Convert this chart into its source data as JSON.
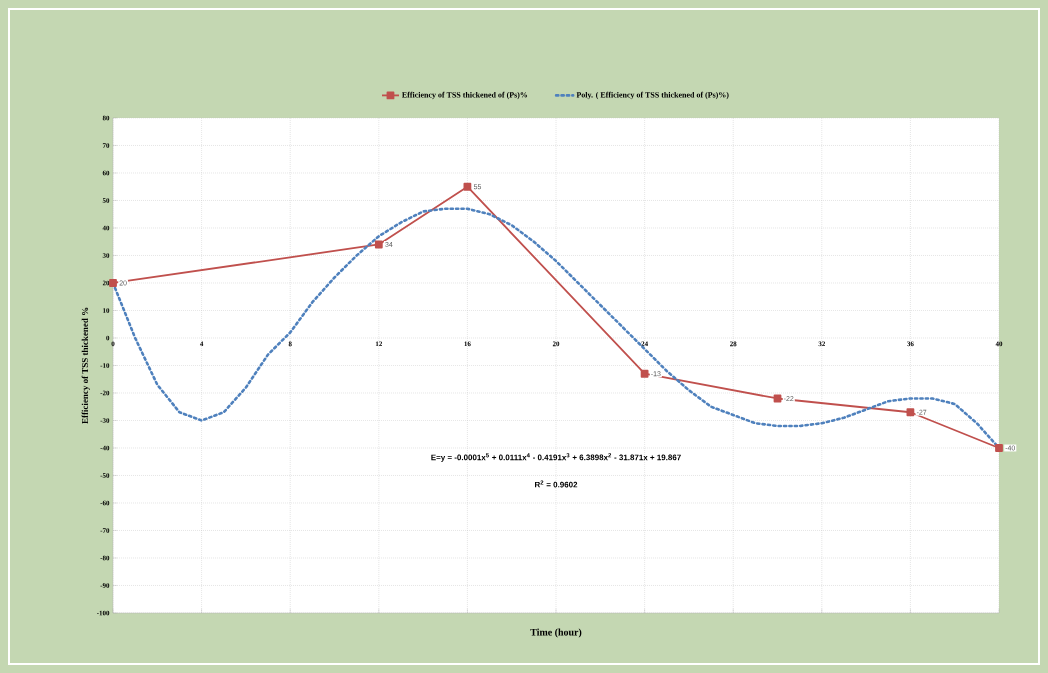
{
  "chart_data": {
    "type": "line",
    "xlabel": "Time (hour)",
    "ylabel": "Efficiency of TSS thickened %",
    "xlim": [
      0,
      40
    ],
    "ylim": [
      -100,
      80
    ],
    "xticks": [
      0,
      4,
      8,
      12,
      16,
      20,
      24,
      28,
      32,
      36,
      40
    ],
    "yticks": [
      -100,
      -90,
      -80,
      -70,
      -60,
      -50,
      -40,
      -30,
      -20,
      -10,
      0,
      10,
      20,
      30,
      40,
      50,
      60,
      70,
      80
    ],
    "grid": true,
    "legend": "top",
    "annotations": [
      "E=y = -0.0001x$^{5}$ + 0.0111x$^{4}$ - 0.4191x$^{3}$ + 6.3898x$^{2}$ - 31.871x + 19.867",
      "R$^{2}$ = 0.9602"
    ],
    "series": [
      {
        "name": "Efficiency of TSS thickened  of (Ps)%",
        "color": "#c0504d",
        "marker": "square",
        "line_style": "solid",
        "x": [
          0,
          12,
          16,
          24,
          30,
          36,
          40
        ],
        "values": [
          20,
          34,
          55,
          -13,
          -22,
          -27,
          -40
        ],
        "value_labels": [
          "20",
          "34",
          "55",
          "-13",
          "-22",
          "-27",
          "-40"
        ]
      },
      {
        "name": "Poly. ( Efficiency of TSS thickened  of (Ps)%)",
        "type": "line",
        "color": "#4f81bd",
        "marker": "none",
        "line_style": "dotted",
        "x": [
          0,
          1,
          2,
          3,
          4,
          5,
          6,
          7,
          8,
          9,
          10,
          11,
          12,
          13,
          14,
          15,
          16,
          17,
          18,
          19,
          20,
          21,
          22,
          23,
          24,
          25,
          26,
          27,
          28,
          29,
          30,
          31,
          32,
          33,
          34,
          35,
          36,
          37,
          38,
          39,
          40
        ],
        "values": [
          20,
          0,
          -17,
          -27,
          -30,
          -27,
          -18,
          -6,
          2,
          13,
          22,
          30,
          37,
          42,
          46,
          47,
          47,
          45,
          41,
          35,
          28,
          20,
          12,
          4,
          -4,
          -12,
          -19,
          -25,
          -28,
          -31,
          -32,
          -32,
          -31,
          -29,
          -26,
          -23,
          -22,
          -22,
          -24,
          -31,
          -40
        ]
      }
    ]
  }
}
